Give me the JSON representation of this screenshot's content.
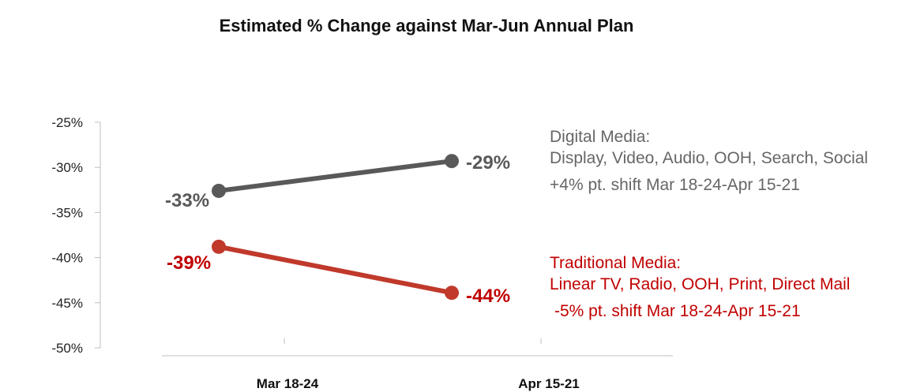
{
  "chart_data": {
    "type": "line",
    "title": "Estimated % Change against Mar-Jun Annual Plan",
    "categories": [
      "Mar 18-24",
      "Apr 15-21"
    ],
    "ylim": [
      -50,
      -25
    ],
    "y_ticks": [
      -25,
      -30,
      -35,
      -40,
      -45,
      -50
    ],
    "y_tick_labels": [
      "-25%",
      "-30%",
      "-35%",
      "-40%",
      "-45%",
      "-50%"
    ],
    "series": [
      {
        "values": [
          -32.6,
          -29.3
        ],
        "labels": [
          "-33%",
          "-29%"
        ],
        "color": "#595959"
      },
      {
        "values": [
          -38.8,
          -43.9
        ],
        "labels": [
          "-39%",
          "-44%"
        ],
        "color": "#c0392b"
      }
    ],
    "annotations": {
      "digital": {
        "line1": "Digital Media:",
        "line2": "Display, Video, Audio, OOH, Search, Social",
        "line3": "+4% pt. shift Mar 18-24-Apr 15-21",
        "color": "#666666"
      },
      "traditional": {
        "line1": "Traditional Media:",
        "line2": "Linear TV, Radio, OOH, Print, Direct Mail",
        "line3": "-5% pt. shift Mar 18-24-Apr 15-21",
        "color": "#c00000"
      }
    },
    "grid": false,
    "legend": "none"
  }
}
